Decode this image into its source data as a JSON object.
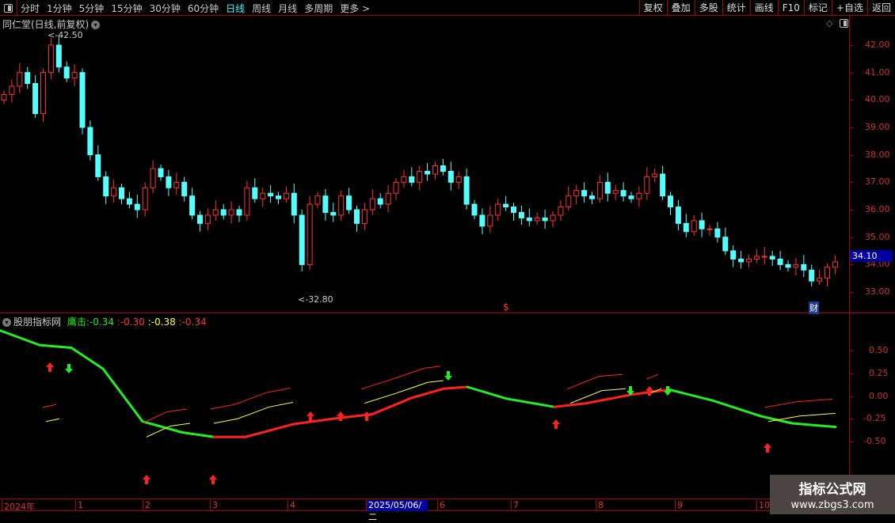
{
  "toolbar": {
    "periods": [
      "分时",
      "1分钟",
      "5分钟",
      "15分钟",
      "30分钟",
      "60分钟",
      "日线",
      "周线",
      "月线",
      "多周期",
      "更多 >"
    ],
    "active": "日线",
    "buttons": [
      "复权",
      "叠加",
      "多股",
      "统计",
      "画线",
      "F10",
      "标记",
      "+自选",
      "返回"
    ]
  },
  "chart_title": "同仁堂(日线,前复权)",
  "price_axis": {
    "labels": [
      "42.00",
      "41.00",
      "40.00",
      "39.00",
      "38.00",
      "37.00",
      "36.00",
      "35.00",
      "34.00",
      "33.00"
    ],
    "current": "34.10",
    "high_label": "42.50",
    "low_label": "32.80"
  },
  "markers": {
    "dollar": "$",
    "finance": "财"
  },
  "indicator": {
    "name": "股朋指标网",
    "label": "鹰击",
    "v1": ":-0.34",
    "v2": ":-0.30",
    "v3": ":-0.38",
    "v4": ":-0.34",
    "axis": [
      "0.50",
      "0.25",
      "0.00",
      "-0.25",
      "-0.50"
    ],
    "main_line": [
      [
        0,
        0.72
      ],
      [
        50,
        0.56
      ],
      [
        90,
        0.53
      ],
      [
        130,
        0.3
      ],
      [
        180,
        -0.28
      ],
      [
        230,
        -0.4
      ],
      [
        270,
        -0.45
      ],
      [
        310,
        -0.45
      ],
      [
        370,
        -0.31
      ],
      [
        420,
        -0.25
      ],
      [
        470,
        -0.2
      ],
      [
        520,
        -0.02
      ],
      [
        560,
        0.08
      ],
      [
        590,
        0.1
      ],
      [
        640,
        -0.03
      ],
      [
        700,
        -0.12
      ],
      [
        740,
        -0.08
      ],
      [
        800,
        0.02
      ],
      [
        845,
        0.07
      ],
      [
        900,
        -0.05
      ],
      [
        960,
        -0.22
      ],
      [
        1000,
        -0.3
      ],
      [
        1055,
        -0.34
      ]
    ],
    "yellow_segments": [
      [
        [
          58,
          -0.28
        ],
        [
          75,
          -0.25
        ]
      ],
      [
        [
          185,
          -0.45
        ],
        [
          215,
          -0.33
        ],
        [
          240,
          -0.3
        ]
      ],
      [
        [
          270,
          -0.3
        ],
        [
          300,
          -0.25
        ],
        [
          340,
          -0.12
        ],
        [
          370,
          -0.07
        ]
      ],
      [
        [
          460,
          -0.08
        ],
        [
          500,
          0.03
        ],
        [
          540,
          0.15
        ],
        [
          560,
          0.17
        ]
      ],
      [
        [
          720,
          -0.08
        ],
        [
          760,
          0.06
        ],
        [
          790,
          0.08
        ]
      ],
      [
        [
          820,
          0.03
        ],
        [
          835,
          0.08
        ]
      ],
      [
        [
          970,
          -0.28
        ],
        [
          1010,
          -0.22
        ],
        [
          1055,
          -0.19
        ]
      ]
    ],
    "red_up_arrows": [
      63,
      185,
      269,
      392,
      430,
      463,
      702,
      820,
      969
    ],
    "green_down_arrows": [
      87,
      566,
      796,
      843
    ]
  },
  "dates": {
    "labels": [
      "2024年",
      "1",
      "2",
      "3",
      "4",
      "6",
      "7",
      "8",
      "9",
      "10"
    ],
    "selected": "2025/05/06/二"
  },
  "closes": [
    40.2,
    40.5,
    41,
    40.6,
    39.5,
    41,
    42,
    41.2,
    40.8,
    41,
    39,
    38,
    37.2,
    36.5,
    36.8,
    36.4,
    36.2,
    36,
    36.8,
    37.5,
    37.2,
    36.8,
    37,
    36.5,
    35.8,
    35.5,
    35.8,
    36,
    35.8,
    36,
    35.8,
    36.8,
    36.4,
    36.6,
    36.5,
    36.4,
    36.6,
    35.8,
    34,
    36.2,
    36.5,
    35.9,
    35.8,
    36.5,
    36,
    35.5,
    36,
    36.4,
    36.2,
    36.6,
    37,
    37.2,
    37,
    37.4,
    37.3,
    37.6,
    37.4,
    37,
    37.2,
    36.2,
    35.8,
    35.4,
    35.8,
    36.2,
    36.1,
    35.9,
    35.7,
    35.6,
    35.7,
    35.6,
    35.8,
    36.1,
    36.5,
    36.7,
    36.5,
    36.4,
    37,
    36.6,
    36.7,
    36.5,
    36.4,
    36.6,
    37.2,
    37.3,
    36.5,
    36.1,
    35.5,
    35.2,
    35.6,
    35.3,
    35.3,
    35,
    34.5,
    34.2,
    34.1,
    34.2,
    34.3,
    34.3,
    34.2,
    34,
    33.9,
    34,
    33.8,
    33.4,
    33.5,
    33.9,
    34.1
  ],
  "colors": {
    "up": "#ff3232",
    "down": "#54ffff",
    "rise": "#ff2020",
    "fall": "#22ee22",
    "yellow": "#ffff33",
    "frame": "#aa0000"
  },
  "watermark": {
    "title": "指标公式网",
    "url": "www.zbgs3.com"
  }
}
